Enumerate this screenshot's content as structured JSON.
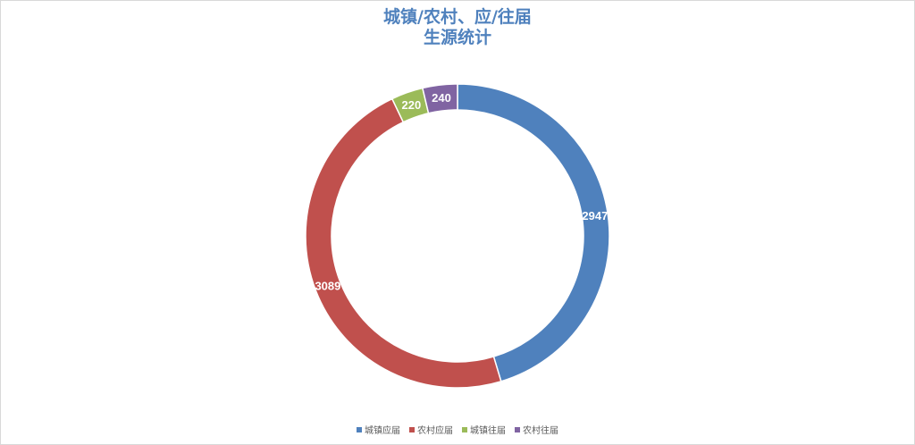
{
  "chart_data": {
    "type": "pie",
    "title_line1": "城镇/农村、应/往届",
    "title_line2": "生源统计",
    "categories": [
      "城镇应届",
      "农村应届",
      "城镇往届",
      "农村往届"
    ],
    "values": [
      2947,
      3089,
      220,
      240
    ],
    "colors": [
      "#4f81bd",
      "#c0504d",
      "#9bbb59",
      "#8064a2"
    ],
    "donut": true,
    "legend_position": "bottom"
  }
}
